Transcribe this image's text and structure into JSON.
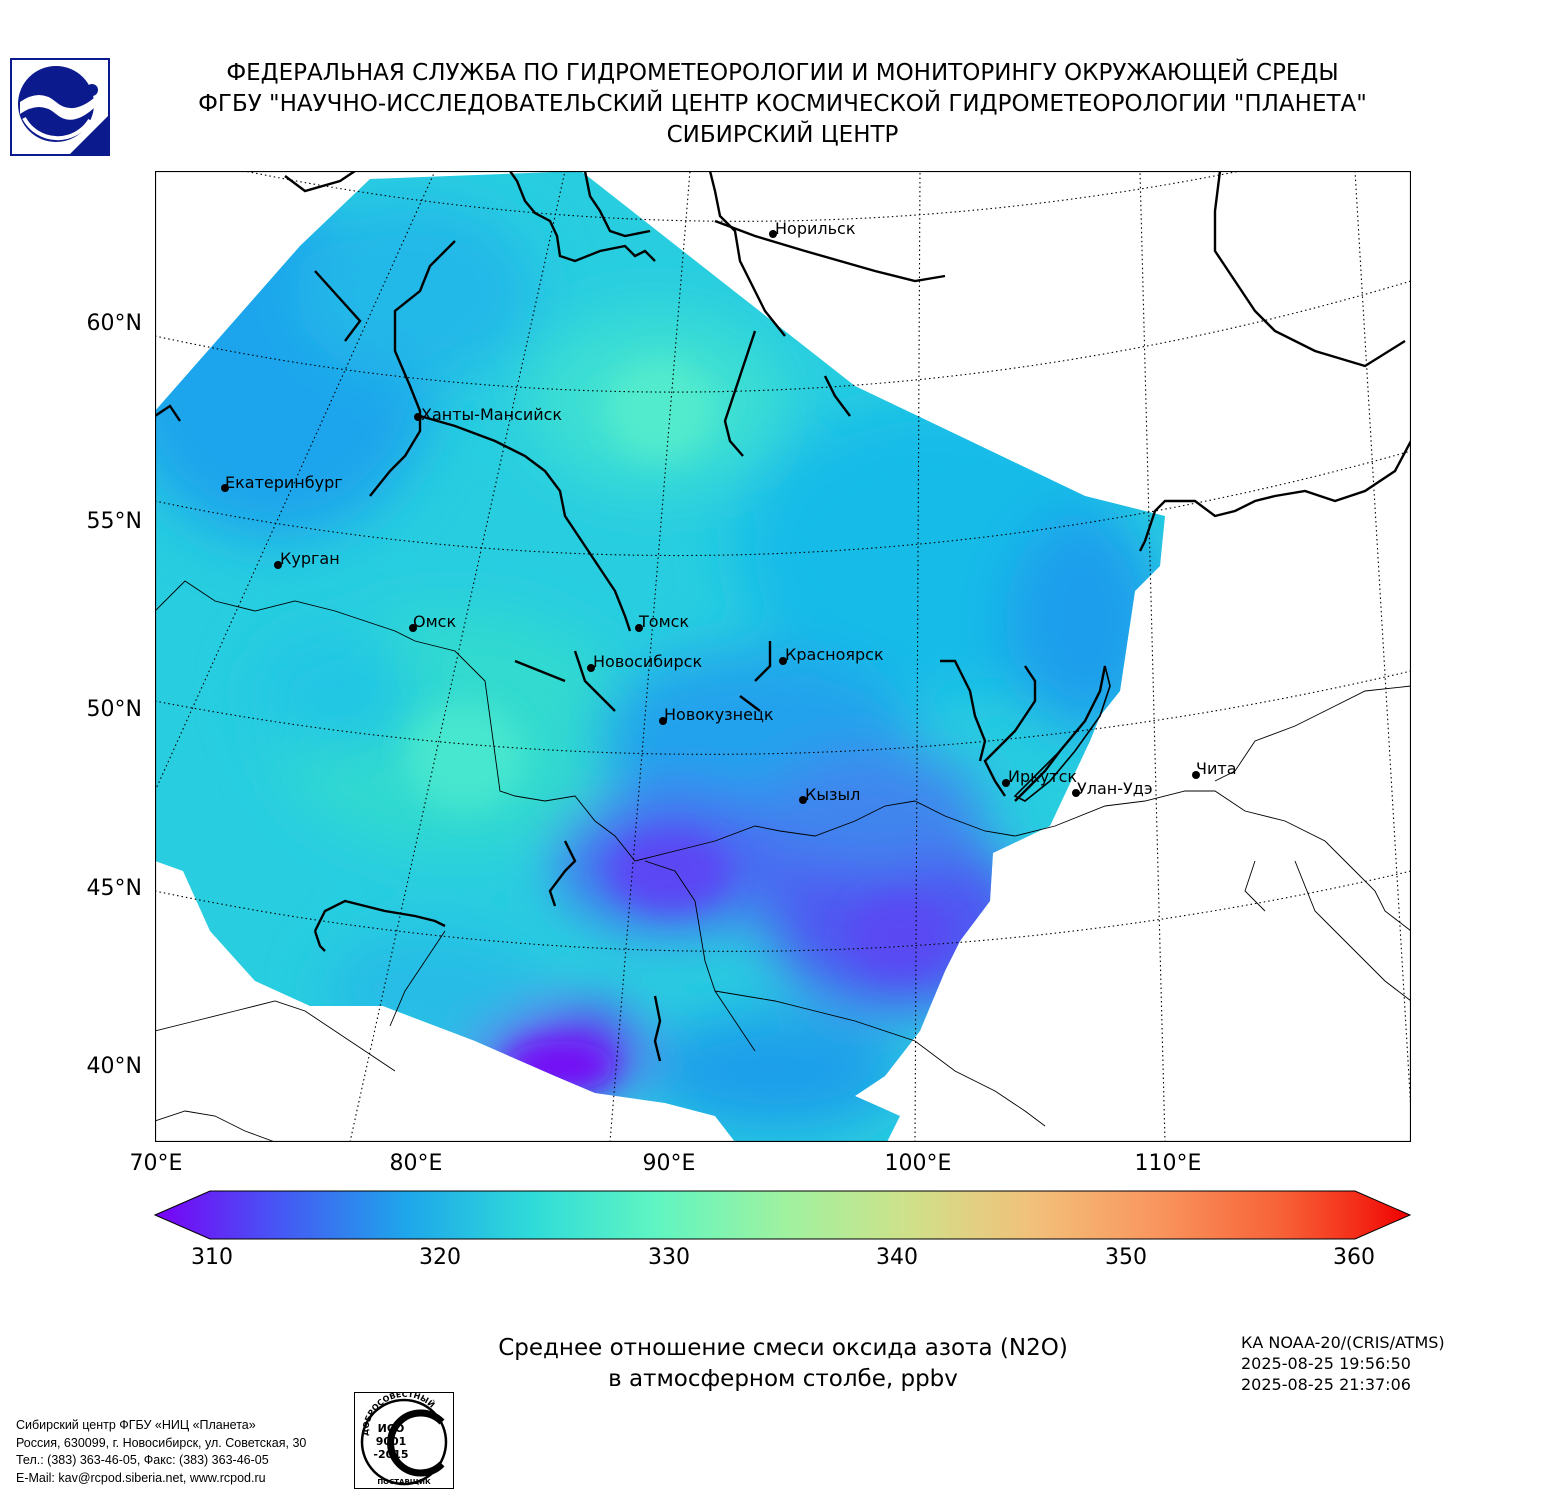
{
  "header": {
    "line1": "ФЕДЕРАЛЬНАЯ СЛУЖБА ПО ГИДРОМЕТЕОРОЛОГИИ И МОНИТОРИНГУ ОКРУЖАЮЩЕЙ СРЕДЫ",
    "line2": "ФГБУ \"НАУЧНО-ИССЛЕДОВАТЕЛЬСКИЙ ЦЕНТР КОСМИЧЕСКОЙ ГИДРОМЕТЕОРОЛОГИИ \"ПЛАНЕТА\"",
    "line3": "СИБИРСКИЙ ЦЕНТР"
  },
  "map": {
    "lat_labels": [
      "60°N",
      "55°N",
      "50°N",
      "45°N",
      "40°N"
    ],
    "lon_labels": [
      "70°E",
      "80°E",
      "90°E",
      "100°E",
      "110°E"
    ],
    "cities": [
      {
        "name": "Норильск"
      },
      {
        "name": "Ханты-Мансийск"
      },
      {
        "name": "Екатеринбург"
      },
      {
        "name": "Курган"
      },
      {
        "name": "Омск"
      },
      {
        "name": "Томск"
      },
      {
        "name": "Новосибирск"
      },
      {
        "name": "Красноярск"
      },
      {
        "name": "Новокузнецк"
      },
      {
        "name": "Иркутск"
      },
      {
        "name": "Кызыл"
      },
      {
        "name": "Улан-Удэ"
      },
      {
        "name": "Чита"
      }
    ]
  },
  "colorbar": {
    "min": 310,
    "max": 360,
    "tick_labels": [
      "310",
      "320",
      "330",
      "340",
      "350",
      "360"
    ],
    "colors": [
      "#7a00f5",
      "#4a50f5",
      "#1ea6ea",
      "#2fdbd9",
      "#60f5c2",
      "#9ef2a0",
      "#cfe18a",
      "#f2c07a",
      "#f9955e",
      "#f76036",
      "#f42b18",
      "#ee0000"
    ]
  },
  "caption": {
    "line1": "Среднее отношение смеси оксида азота (N2O)",
    "line2": "в атмосферном столбе, ppbv"
  },
  "satellite": {
    "name": "КА NOAA-20/(CRIS/ATMS)",
    "time_start": "2025-08-25 19:56:50",
    "time_end": "2025-08-25 21:37:06"
  },
  "footer": {
    "line1": "Сибирский центр ФГБУ «НИЦ «Планета»",
    "line2": "Россия, 630099, г. Новосибирск, ул. Советская, 30",
    "line3": "Тел.: (383) 363-46-05, Факс: (383) 363-46-05",
    "line4": "E-Mail: kav@rcpod.siberia.net, www.rcpod.ru"
  },
  "iso_stamp": {
    "top_text": "ДОБРОСОВЕСТНЫЙ",
    "code1": "ИСО",
    "code2": "9001",
    "code3": "-2015",
    "bottom_text": "ПОСТАВЩИК"
  }
}
